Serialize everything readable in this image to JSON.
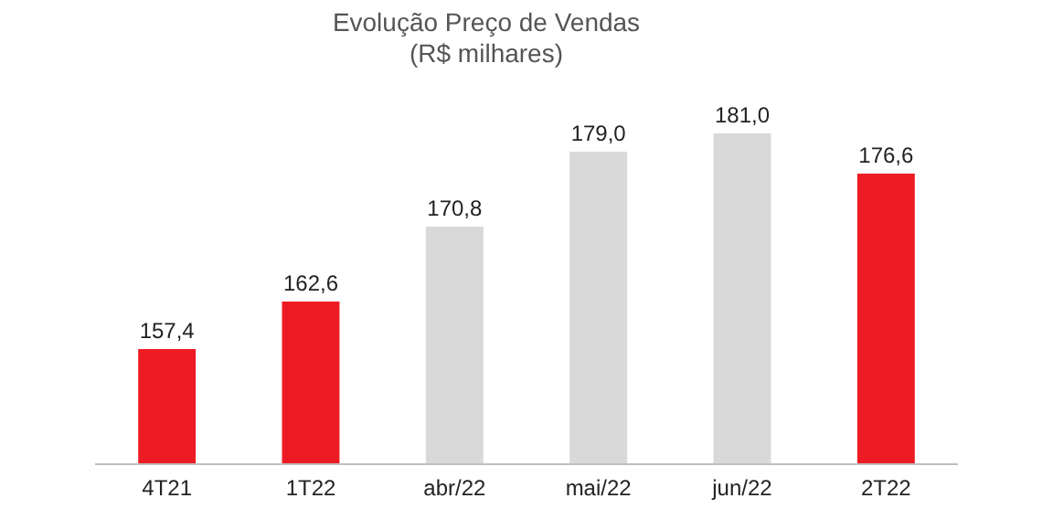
{
  "chart_data": {
    "type": "bar",
    "title": "Evolução Preço de Vendas",
    "subtitle": "(R$ milhares)",
    "categories": [
      "4T21",
      "1T22",
      "abr/22",
      "mai/22",
      "jun/22",
      "2T22"
    ],
    "values": [
      157.4,
      162.6,
      170.8,
      179.0,
      181.0,
      176.6
    ],
    "colors": [
      "#ed1c24",
      "#ed1c24",
      "#d9d9d9",
      "#d9d9d9",
      "#d9d9d9",
      "#ed1c24"
    ],
    "value_labels": [
      "157,4",
      "162,6",
      "170,8",
      "179,0",
      "181,0",
      "176,6"
    ],
    "ylim": [
      144.8,
      181
    ],
    "grid": false
  }
}
